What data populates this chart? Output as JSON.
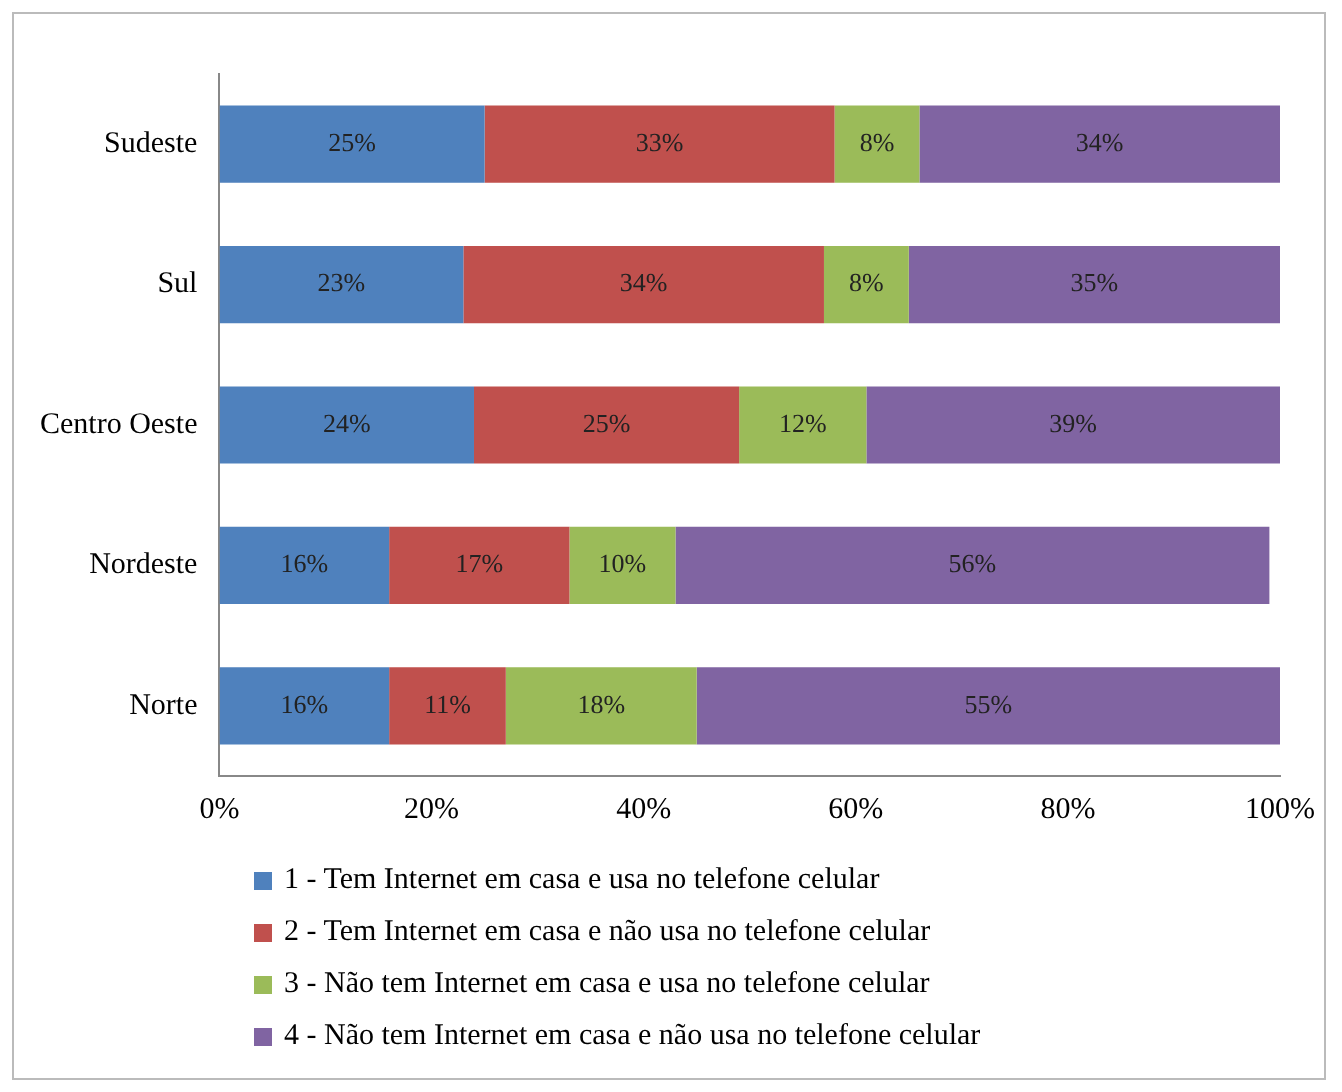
{
  "chart_data": {
    "type": "bar",
    "orientation": "horizontal",
    "stacked": true,
    "grid": false,
    "legend": "bottom",
    "categories": [
      "Sudeste",
      "Sul",
      "Centro Oeste",
      "Nordeste",
      "Norte"
    ],
    "series": [
      {
        "name": "1 - Tem Internet em casa e usa no telefone celular",
        "color": "#4f81bd",
        "values": [
          25,
          23,
          24,
          16,
          16
        ],
        "value_labels": [
          "25%",
          "23%",
          "24%",
          "16%",
          "16%"
        ]
      },
      {
        "name": "2 - Tem Internet em casa e não usa no telefone celular",
        "color": "#c0504d",
        "values": [
          33,
          34,
          25,
          17,
          11
        ],
        "value_labels": [
          "33%",
          "34%",
          "25%",
          "17%",
          "11%"
        ]
      },
      {
        "name": "3 - Não tem Internet em casa e usa no telefone celular",
        "color": "#9bbb59",
        "values": [
          8,
          8,
          12,
          10,
          18
        ],
        "value_labels": [
          "8%",
          "8%",
          "12%",
          "10%",
          "18%"
        ]
      },
      {
        "name": "4 - Não tem Internet em casa e não usa no telefone celular",
        "color": "#8064a2",
        "values": [
          34,
          35,
          39,
          56,
          55
        ],
        "value_labels": [
          "34%",
          "35%",
          "39%",
          "56%",
          "55%"
        ]
      }
    ],
    "xlim": [
      0,
      100
    ],
    "xticks": [
      {
        "value": 0,
        "label": "0%"
      },
      {
        "value": 20,
        "label": "20%"
      },
      {
        "value": 40,
        "label": "40%"
      },
      {
        "value": 60,
        "label": "60%"
      },
      {
        "value": 80,
        "label": "80%"
      },
      {
        "value": 100,
        "label": "100%"
      }
    ]
  }
}
